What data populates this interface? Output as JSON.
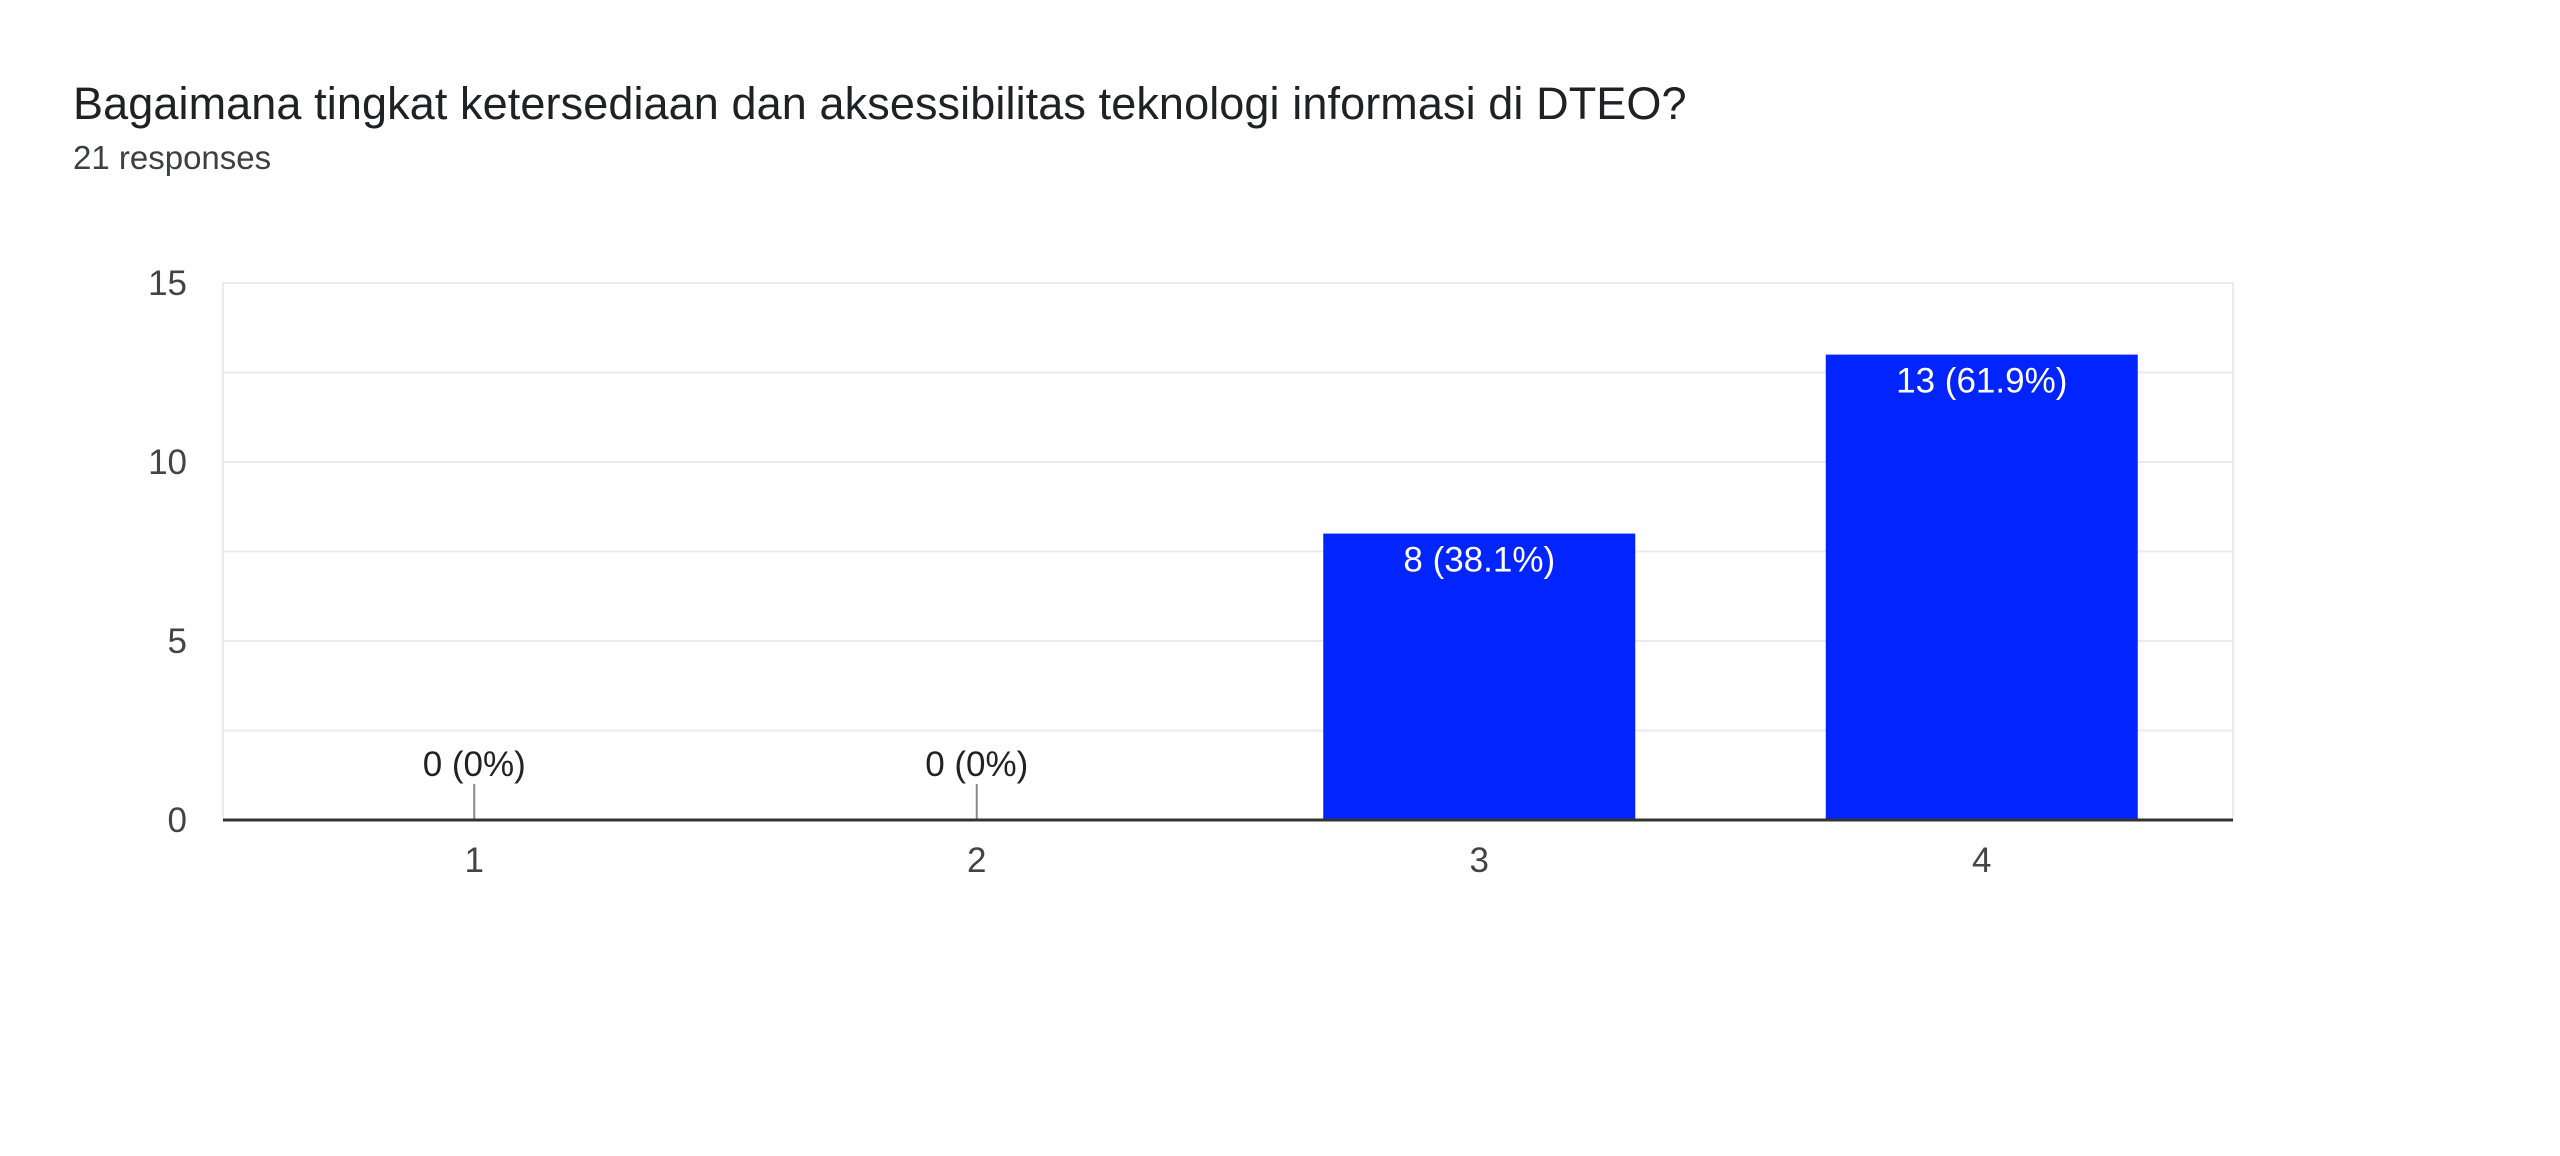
{
  "header": {
    "title": "Bagaimana tingkat ketersediaan dan aksessibilitas teknologi informasi di DTEO?",
    "subtitle": "21 responses"
  },
  "colors": {
    "bar": "#0225ff",
    "grid": "#ebebeb",
    "baseline": "#333333"
  },
  "chart_data": {
    "type": "bar",
    "categories": [
      "1",
      "2",
      "3",
      "4"
    ],
    "values": [
      0,
      0,
      8,
      13
    ],
    "data_labels": [
      "0 (0%)",
      "0 (0%)",
      "8 (38.1%)",
      "13 (61.9%)"
    ],
    "ylim": [
      0,
      15
    ],
    "yticks": [
      0,
      5,
      10,
      15
    ],
    "grid": true,
    "legend": "none"
  }
}
